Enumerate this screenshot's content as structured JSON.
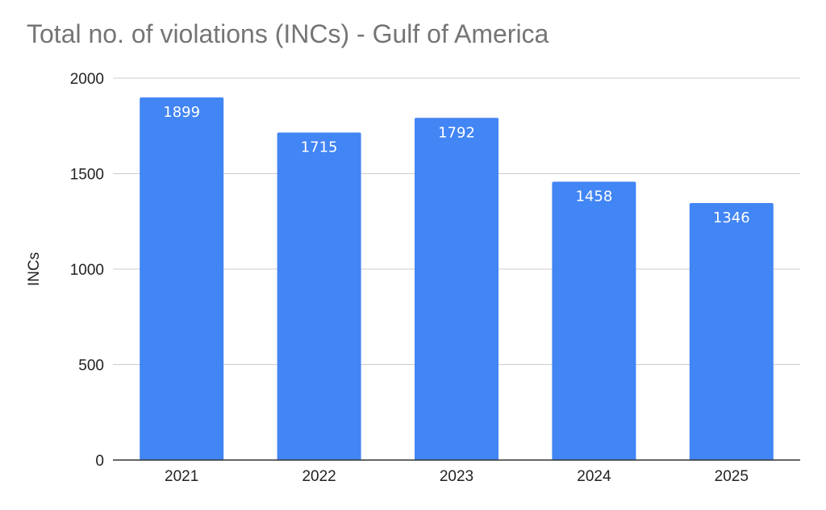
{
  "chart_data": {
    "type": "bar",
    "title": "Total no. of violations (INCs) - Gulf of America",
    "xlabel": "",
    "ylabel": "INCs",
    "categories": [
      "2021",
      "2022",
      "2023",
      "2024",
      "2025"
    ],
    "values": [
      1899,
      1715,
      1792,
      1458,
      1346
    ],
    "data_labels": [
      "1899",
      "1715",
      "1792",
      "1458",
      "1346"
    ],
    "ylim": [
      0,
      2000
    ],
    "yticks": [
      0,
      500,
      1000,
      1500,
      2000
    ],
    "ytick_labels": [
      "0",
      "500",
      "1000",
      "1500",
      "2000"
    ],
    "grid": true,
    "legend": "none",
    "colors": {
      "bar": "#4285f4",
      "grid": "#cccccc",
      "axis": "#333333",
      "title": "#757575"
    }
  }
}
